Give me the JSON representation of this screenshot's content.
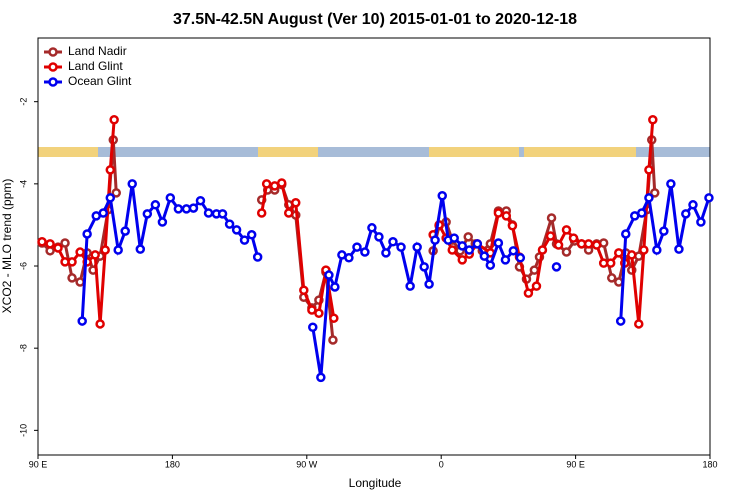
{
  "chart_data": {
    "type": "line",
    "title": "37.5N-42.5N August (Ver 10)   2015-01-01 to 2020-12-18",
    "x_label": "Longitude",
    "y_label": "XCO2 - MLO trend (ppm)",
    "xlim": [
      90,
      540
    ],
    "ylim": [
      -10.6,
      -0.45
    ],
    "xticks": [
      {
        "value": 90,
        "label": "90 E"
      },
      180,
      {
        "value": 270,
        "label": "90 W"
      },
      {
        "value": 360,
        "label": "0"
      },
      {
        "value": 450,
        "label": "90 E"
      },
      {
        "value": 540,
        "label": "180"
      }
    ],
    "yticks": [
      -2,
      -4,
      -6,
      -8,
      -10
    ],
    "legend": "top-left",
    "series": [
      {
        "name": "Land Nadir",
        "color": "#a52a2a",
        "x": [
          92.7,
          98.1,
          103.4,
          108.1,
          112.8,
          118.2,
          122.9,
          126.9,
          131.6,
          137.0,
          140.4,
          142.4,
          null,
          239.8,
          243.8,
          248.5,
          253.2,
          257.9,
          262.6,
          268.0,
          273.4,
          278.1,
          282.8,
          287.5,
          null,
          354.6,
          358.6,
          363.3,
          367.4,
          372.7,
          378.1,
          382.8,
          387.5,
          392.9,
          398.3,
          403.6,
          407.7,
          412.4,
          417.1,
          422.4,
          425.8,
          433.9,
          437.2,
          443.9,
          449.3,
          454.0,
          458.7,
          464.1,
          468.8,
          474.2,
          478.9,
          483.6,
          487.6,
          492.3,
          497.7,
          501.0,
          503.0
        ],
        "values": [
          -5.44,
          -5.63,
          -5.54,
          -5.44,
          -6.29,
          -6.39,
          -5.68,
          -6.1,
          -5.76,
          -4.63,
          -2.93,
          -4.22,
          null,
          -4.39,
          -4.15,
          -4.15,
          -4.02,
          -4.51,
          -4.76,
          -6.76,
          -7.02,
          -6.83,
          -6.15,
          -7.8,
          null,
          -5.63,
          -5.02,
          -4.93,
          -5.37,
          -5.63,
          -5.29,
          -5.46,
          -5.63,
          -5.46,
          -4.66,
          -4.66,
          -5.0,
          -6.02,
          -6.32,
          -6.1,
          -5.78,
          -4.83,
          -5.46,
          -5.66,
          -5.39,
          -5.46,
          -5.61,
          -5.46,
          -5.44,
          -6.29,
          -6.39,
          -5.68,
          -6.1,
          -5.76,
          -4.63,
          -2.93,
          -4.22
        ]
      },
      {
        "name": "Land Glint",
        "color": "#e00000",
        "x": [
          92.7,
          98.1,
          103.4,
          108.1,
          112.8,
          118.2,
          122.9,
          128.3,
          131.6,
          135.0,
          138.4,
          141.0,
          null,
          239.8,
          243.1,
          248.5,
          253.2,
          257.9,
          262.6,
          268.0,
          273.4,
          278.1,
          282.8,
          288.1,
          null,
          354.6,
          358.6,
          363.3,
          367.4,
          374.1,
          378.8,
          384.2,
          392.9,
          398.3,
          403.6,
          407.7,
          412.4,
          418.4,
          423.8,
          427.8,
          433.2,
          438.6,
          443.9,
          448.6,
          454.0,
          458.7,
          464.1,
          468.8,
          473.5,
          478.9,
          482.9,
          487.6,
          492.3,
          495.7,
          499.1,
          501.7
        ],
        "values": [
          -5.41,
          -5.46,
          -5.56,
          -5.9,
          -5.9,
          -5.66,
          -5.9,
          -5.73,
          -7.41,
          -5.61,
          -3.66,
          -2.44,
          null,
          -4.71,
          -4.0,
          -4.05,
          -3.98,
          -4.71,
          -4.46,
          -6.59,
          -7.07,
          -7.15,
          -6.1,
          -7.27,
          null,
          -5.24,
          -5.0,
          -5.32,
          -5.61,
          -5.85,
          -5.71,
          -5.46,
          -5.68,
          -4.71,
          -4.78,
          -5.02,
          -5.78,
          -6.66,
          -6.49,
          -5.61,
          -5.27,
          -5.49,
          -5.12,
          -5.32,
          -5.46,
          -5.46,
          -5.49,
          -5.93,
          -5.93,
          -5.68,
          -5.93,
          -5.73,
          -7.41,
          -5.61,
          -3.66,
          -2.44
        ]
      },
      {
        "name": "Ocean Glint",
        "color": "#0000ee",
        "x": [
          119.6,
          122.9,
          129.0,
          133.7,
          138.4,
          143.7,
          148.4,
          153.1,
          158.5,
          163.2,
          168.6,
          173.3,
          178.6,
          184.0,
          189.4,
          194.1,
          198.8,
          204.2,
          209.5,
          213.6,
          218.3,
          223.0,
          228.3,
          233.1,
          237.1,
          null,
          274.0,
          279.4,
          284.8,
          288.8,
          293.5,
          298.2,
          303.6,
          308.9,
          313.6,
          318.3,
          323.0,
          327.7,
          333.1,
          339.2,
          343.9,
          348.6,
          351.9,
          355.9,
          360.7,
          364.7,
          368.7,
          374.1,
          378.8,
          384.2,
          388.9,
          392.9,
          398.3,
          403.0,
          408.3,
          413.0,
          null,
          437.2,
          null,
          480.2,
          483.6,
          489.6,
          494.3,
          499.1,
          504.4,
          509.1,
          513.8,
          519.2,
          523.8,
          528.6,
          533.9,
          539.3
        ],
        "values": [
          -7.34,
          -5.22,
          -4.78,
          -4.71,
          -4.34,
          -5.61,
          -5.15,
          -4.0,
          -5.59,
          -4.73,
          -4.51,
          -4.93,
          -4.34,
          -4.61,
          -4.61,
          -4.59,
          -4.41,
          -4.71,
          -4.73,
          -4.73,
          -4.98,
          -5.12,
          -5.37,
          -5.24,
          -5.78,
          null,
          -7.49,
          -8.71,
          -6.22,
          -6.51,
          -5.73,
          -5.8,
          -5.54,
          -5.66,
          -5.07,
          -5.29,
          -5.68,
          -5.41,
          -5.54,
          -6.49,
          -5.54,
          -6.02,
          -6.44,
          -5.37,
          -4.29,
          -5.37,
          -5.32,
          -5.51,
          -5.61,
          -5.46,
          -5.76,
          -5.98,
          -5.44,
          -5.85,
          -5.63,
          -5.8,
          null,
          -6.02,
          null,
          -7.34,
          -5.22,
          -4.78,
          -4.71,
          -4.34,
          -5.61,
          -5.15,
          -4.0,
          -5.59,
          -4.73,
          -4.51,
          -4.93,
          -4.34
        ]
      }
    ]
  }
}
